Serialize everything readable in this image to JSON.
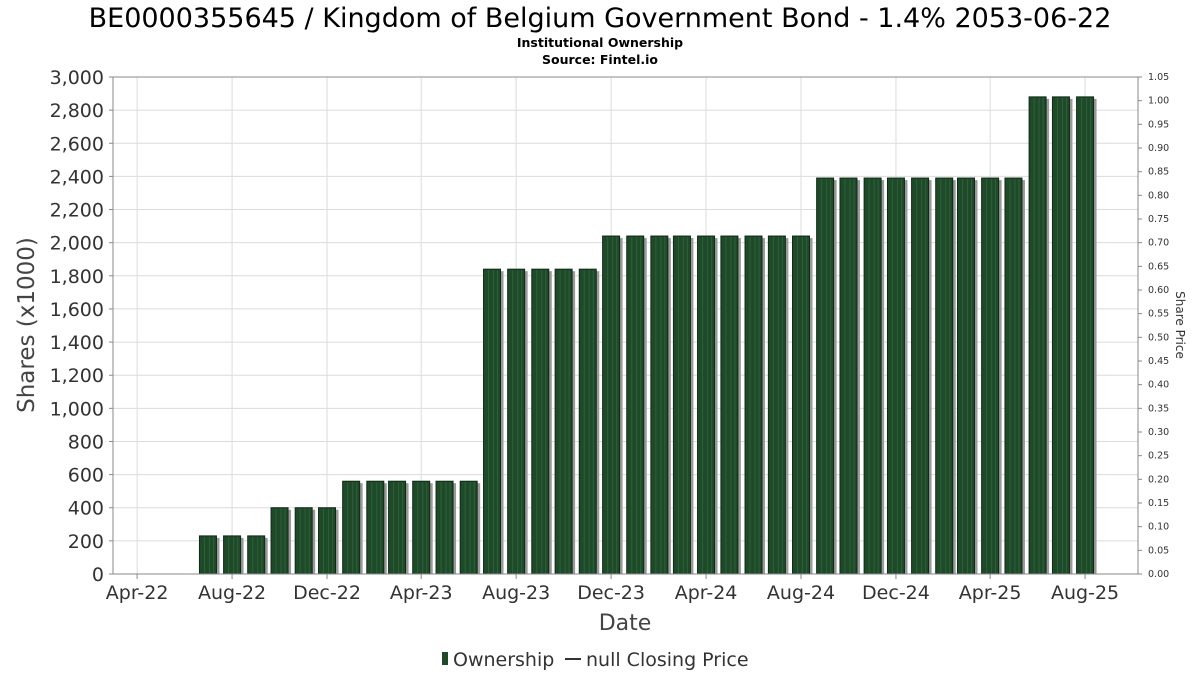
{
  "chart_data": {
    "type": "bar",
    "title": "BE0000355645 / Kingdom of Belgium Government Bond - 1.4% 2053-06-22",
    "subtitle": "Institutional Ownership",
    "source": "Source: Fintel.io",
    "xlabel": "Date",
    "ylabel": "Shares (x1000)",
    "y2label": "Share Price",
    "ylim": [
      0,
      3000
    ],
    "y2lim": [
      0,
      1.05
    ],
    "xlim": [
      "2022-03-01",
      "2025-10-08"
    ],
    "grid": true,
    "legend_position": "bottom",
    "yticks": [
      0,
      200,
      400,
      600,
      800,
      1000,
      1200,
      1400,
      1600,
      1800,
      2000,
      2200,
      2400,
      2600,
      2800,
      3000
    ],
    "ytick_labels": [
      "0",
      "200",
      "400",
      "600",
      "800",
      "1,000",
      "1,200",
      "1,400",
      "1,600",
      "1,800",
      "2,000",
      "2,200",
      "2,400",
      "2,600",
      "2,800",
      "3,000"
    ],
    "y2ticks": [
      "0.00",
      "0.05",
      "0.10",
      "0.15",
      "0.20",
      "0.25",
      "0.30",
      "0.35",
      "0.40",
      "0.45",
      "0.50",
      "0.55",
      "0.60",
      "0.65",
      "0.70",
      "0.75",
      "0.80",
      "0.85",
      "0.90",
      "0.95",
      "1.00",
      "1.05"
    ],
    "xticks": [
      {
        "date": "2022-04-01",
        "label": "Apr-22"
      },
      {
        "date": "2022-08-01",
        "label": "Aug-22"
      },
      {
        "date": "2022-12-01",
        "label": "Dec-22"
      },
      {
        "date": "2023-04-01",
        "label": "Apr-23"
      },
      {
        "date": "2023-08-01",
        "label": "Aug-23"
      },
      {
        "date": "2023-12-01",
        "label": "Dec-23"
      },
      {
        "date": "2024-04-01",
        "label": "Apr-24"
      },
      {
        "date": "2024-08-01",
        "label": "Aug-24"
      },
      {
        "date": "2024-12-01",
        "label": "Dec-24"
      },
      {
        "date": "2025-04-01",
        "label": "Apr-25"
      },
      {
        "date": "2025-08-01",
        "label": "Aug-25"
      }
    ],
    "series": [
      {
        "name": "Ownership",
        "color": "#1f4a2a",
        "x": [
          "2022-07-01",
          "2022-08-01",
          "2022-09-01",
          "2022-10-01",
          "2022-11-01",
          "2022-12-01",
          "2023-01-01",
          "2023-02-01",
          "2023-03-01",
          "2023-04-01",
          "2023-05-01",
          "2023-06-01",
          "2023-07-01",
          "2023-08-01",
          "2023-09-01",
          "2023-10-01",
          "2023-11-01",
          "2023-12-01",
          "2024-01-01",
          "2024-02-01",
          "2024-03-01",
          "2024-04-01",
          "2024-05-01",
          "2024-06-01",
          "2024-07-01",
          "2024-08-01",
          "2024-09-01",
          "2024-10-01",
          "2024-11-01",
          "2024-12-01",
          "2025-01-01",
          "2025-02-01",
          "2025-03-01",
          "2025-04-01",
          "2025-05-01",
          "2025-06-01",
          "2025-07-01",
          "2025-08-01"
        ],
        "values": [
          230,
          230,
          230,
          400,
          400,
          400,
          560,
          560,
          560,
          560,
          560,
          560,
          1840,
          1840,
          1840,
          1840,
          1840,
          2040,
          2040,
          2040,
          2040,
          2040,
          2040,
          2040,
          2040,
          2040,
          2390,
          2390,
          2390,
          2390,
          2390,
          2390,
          2390,
          2390,
          2390,
          2880,
          2880,
          2880
        ]
      },
      {
        "name": "null Closing Price",
        "color": "#333333",
        "x": [],
        "values": []
      }
    ]
  }
}
